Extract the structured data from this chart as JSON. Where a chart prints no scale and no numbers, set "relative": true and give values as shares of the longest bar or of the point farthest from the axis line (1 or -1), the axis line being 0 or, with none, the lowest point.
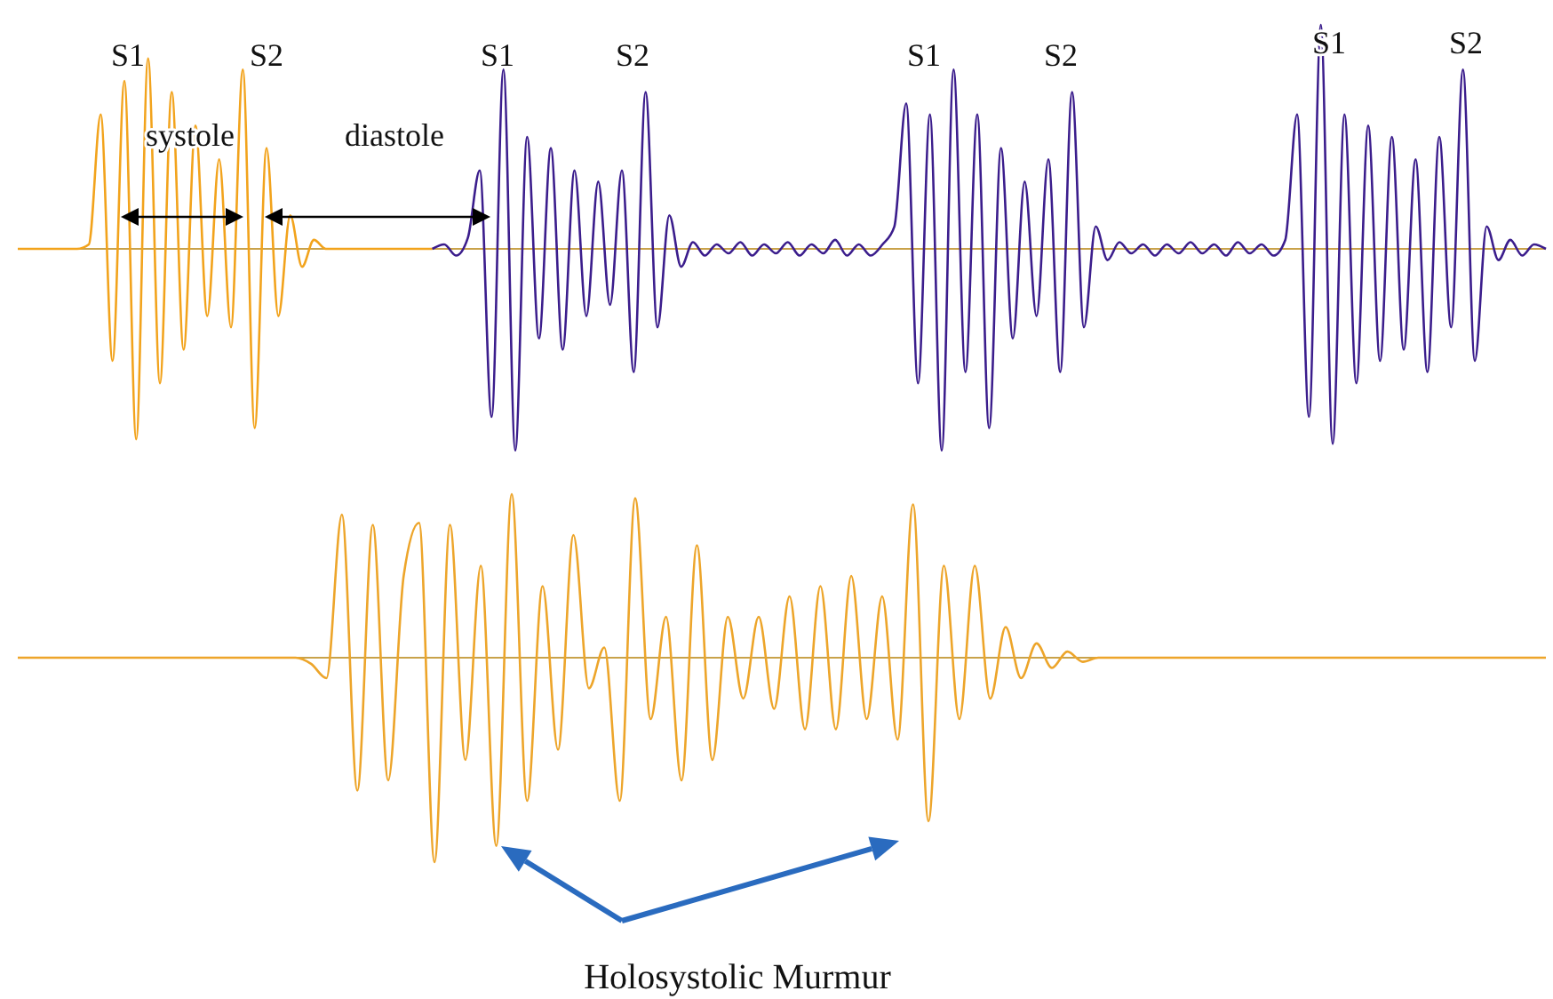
{
  "chart_data": [
    {
      "type": "line",
      "relative": true,
      "categories": [
        null,
        null,
        null,
        null,
        null,
        null,
        null,
        null,
        null,
        null,
        null,
        null,
        null,
        null,
        null,
        null,
        null,
        null,
        null,
        null,
        null,
        null,
        null,
        null,
        null,
        null,
        null,
        null,
        null,
        null,
        null,
        null,
        null,
        null,
        null,
        null,
        null,
        null,
        null,
        null,
        null,
        null,
        null,
        null,
        null,
        null,
        null,
        null,
        null,
        null,
        null,
        null,
        null,
        null,
        null,
        null,
        null,
        null,
        null,
        null,
        null,
        null,
        null,
        null,
        null,
        null,
        null,
        null,
        null,
        null,
        null,
        null,
        null,
        null,
        null,
        null,
        null,
        null,
        null,
        null,
        null,
        null,
        null,
        null,
        null,
        null,
        null,
        null,
        null,
        null,
        null,
        null,
        null,
        null,
        null,
        null,
        null,
        null,
        null,
        null,
        null,
        null,
        null,
        null,
        null,
        null,
        null,
        null,
        null,
        null,
        null,
        null,
        null,
        null,
        null,
        null,
        null,
        null,
        null,
        null,
        null,
        null,
        null,
        null,
        null,
        null,
        null,
        null,
        null,
        null
      ],
      "series": [
        {
          "color": "#f2a31c",
          "values": [
            0,
            0,
            0,
            0,
            0,
            0,
            0.02,
            0.6,
            -0.5,
            0.75,
            -0.85,
            0.85,
            -0.6,
            0.7,
            -0.45,
            0.55,
            -0.3,
            0.4,
            -0.35,
            0.8,
            -0.8,
            0.45,
            -0.3,
            0.15,
            -0.08,
            0.04,
            0,
            0,
            0,
            0,
            0,
            0,
            0,
            0,
            0,
            0,
            null,
            null,
            null,
            null,
            null,
            null,
            null,
            null,
            null,
            null,
            null,
            null,
            null,
            null,
            null,
            null,
            null,
            null,
            null,
            null,
            null,
            null,
            null,
            null,
            null,
            null,
            null,
            null,
            null,
            null,
            null,
            null,
            null,
            null,
            null,
            null,
            null,
            null,
            null,
            null,
            null,
            null,
            null,
            null,
            null,
            null,
            null,
            null,
            null,
            null,
            null,
            null,
            null,
            null,
            null,
            null,
            null,
            null,
            null,
            null,
            null,
            null,
            null,
            null,
            null,
            null,
            null,
            null,
            null,
            null,
            null,
            null,
            null,
            null,
            null,
            null,
            null,
            null,
            null,
            null,
            null,
            null,
            null,
            null,
            null,
            null,
            null,
            null,
            null,
            null,
            null,
            null,
            null,
            null
          ]
        },
        {
          "color": "#3b1d8c",
          "values": [
            null,
            null,
            null,
            null,
            null,
            null,
            null,
            null,
            null,
            null,
            null,
            null,
            null,
            null,
            null,
            null,
            null,
            null,
            null,
            null,
            null,
            null,
            null,
            null,
            null,
            null,
            null,
            null,
            null,
            null,
            null,
            null,
            null,
            null,
            null,
            0,
            0.02,
            -0.03,
            0.05,
            0.35,
            -0.75,
            0.8,
            -0.9,
            0.5,
            -0.4,
            0.45,
            -0.45,
            0.35,
            -0.3,
            0.3,
            -0.25,
            0.35,
            -0.55,
            0.7,
            -0.35,
            0.15,
            -0.08,
            0.03,
            -0.03,
            0.02,
            -0.02,
            0.03,
            -0.03,
            0.02,
            -0.02,
            0.03,
            -0.03,
            0.02,
            -0.02,
            0.04,
            -0.03,
            0.02,
            -0.03,
            0.02,
            0.1,
            0.65,
            -0.6,
            0.6,
            -0.9,
            0.8,
            -0.55,
            0.6,
            -0.8,
            0.45,
            -0.4,
            0.3,
            -0.3,
            0.4,
            -0.55,
            0.7,
            -0.35,
            0.1,
            -0.05,
            0.03,
            -0.02,
            0.02,
            -0.03,
            0.02,
            -0.02,
            0.03,
            -0.02,
            0.02,
            -0.03,
            0.03,
            -0.02,
            0.02,
            -0.03,
            0.04,
            0.6,
            -0.75,
            1.0,
            -0.87,
            0.6,
            -0.6,
            0.55,
            -0.5,
            0.5,
            -0.45,
            0.4,
            -0.55,
            0.5,
            -0.35,
            0.8,
            -0.5,
            0.1,
            -0.05,
            0.04,
            -0.03,
            0.02,
            0
          ]
        }
      ],
      "ref_lines": [
        {
          "axis": "y",
          "value": 0,
          "color": "#c9a24a"
        }
      ],
      "annotations": [
        "S1",
        "S2",
        "systole",
        "diastole",
        "S1",
        "S2",
        "S1",
        "S2",
        "S1",
        "S2"
      ]
    },
    {
      "type": "line",
      "relative": true,
      "categories": [
        null,
        null,
        null,
        null,
        null,
        null,
        null,
        null,
        null,
        null,
        null,
        null,
        null,
        null,
        null,
        null,
        null,
        null,
        null,
        null,
        null,
        null,
        null,
        null,
        null,
        null,
        null,
        null,
        null,
        null,
        null,
        null,
        null,
        null,
        null,
        null,
        null,
        null,
        null,
        null,
        null,
        null,
        null,
        null,
        null,
        null,
        null,
        null,
        null,
        null,
        null,
        null,
        null,
        null,
        null,
        null,
        null,
        null,
        null,
        null,
        null,
        null,
        null,
        null,
        null,
        null,
        null,
        null,
        null,
        null,
        null,
        null,
        null,
        null,
        null,
        null,
        null,
        null,
        null,
        null,
        null,
        null,
        null,
        null,
        null,
        null,
        null,
        null,
        null,
        null,
        null,
        null,
        null,
        null,
        null,
        null,
        null,
        null,
        null,
        null
      ],
      "series": [
        {
          "color": "#eda52a",
          "values": [
            0,
            0,
            0,
            0,
            0,
            0,
            0,
            0,
            0,
            0,
            0,
            0,
            0,
            0,
            0,
            0,
            0,
            0,
            0,
            -0.03,
            -0.1,
            0.7,
            -0.65,
            0.65,
            -0.6,
            0.4,
            0.66,
            -1.0,
            0.65,
            -0.5,
            0.45,
            -0.92,
            0.8,
            -0.7,
            0.35,
            -0.45,
            0.6,
            -0.15,
            0.05,
            -0.7,
            0.78,
            -0.3,
            0.2,
            -0.6,
            0.55,
            -0.5,
            0.2,
            -0.2,
            0.2,
            -0.25,
            0.3,
            -0.35,
            0.35,
            -0.35,
            0.4,
            -0.3,
            0.3,
            -0.4,
            0.75,
            -0.8,
            0.45,
            -0.3,
            0.45,
            -0.2,
            0.15,
            -0.1,
            0.07,
            -0.05,
            0.03,
            -0.02,
            0,
            0,
            0,
            0,
            0,
            0,
            0,
            0,
            0,
            0,
            0,
            0,
            0,
            0,
            0,
            0,
            0,
            0,
            0,
            0,
            0,
            0,
            0,
            0,
            0,
            0,
            0,
            0,
            0,
            0
          ]
        }
      ],
      "ref_lines": [
        {
          "axis": "y",
          "value": 0,
          "color": "#c9a24a"
        }
      ],
      "annotations": [
        "Holosystolic Murmur"
      ]
    }
  ]
}
